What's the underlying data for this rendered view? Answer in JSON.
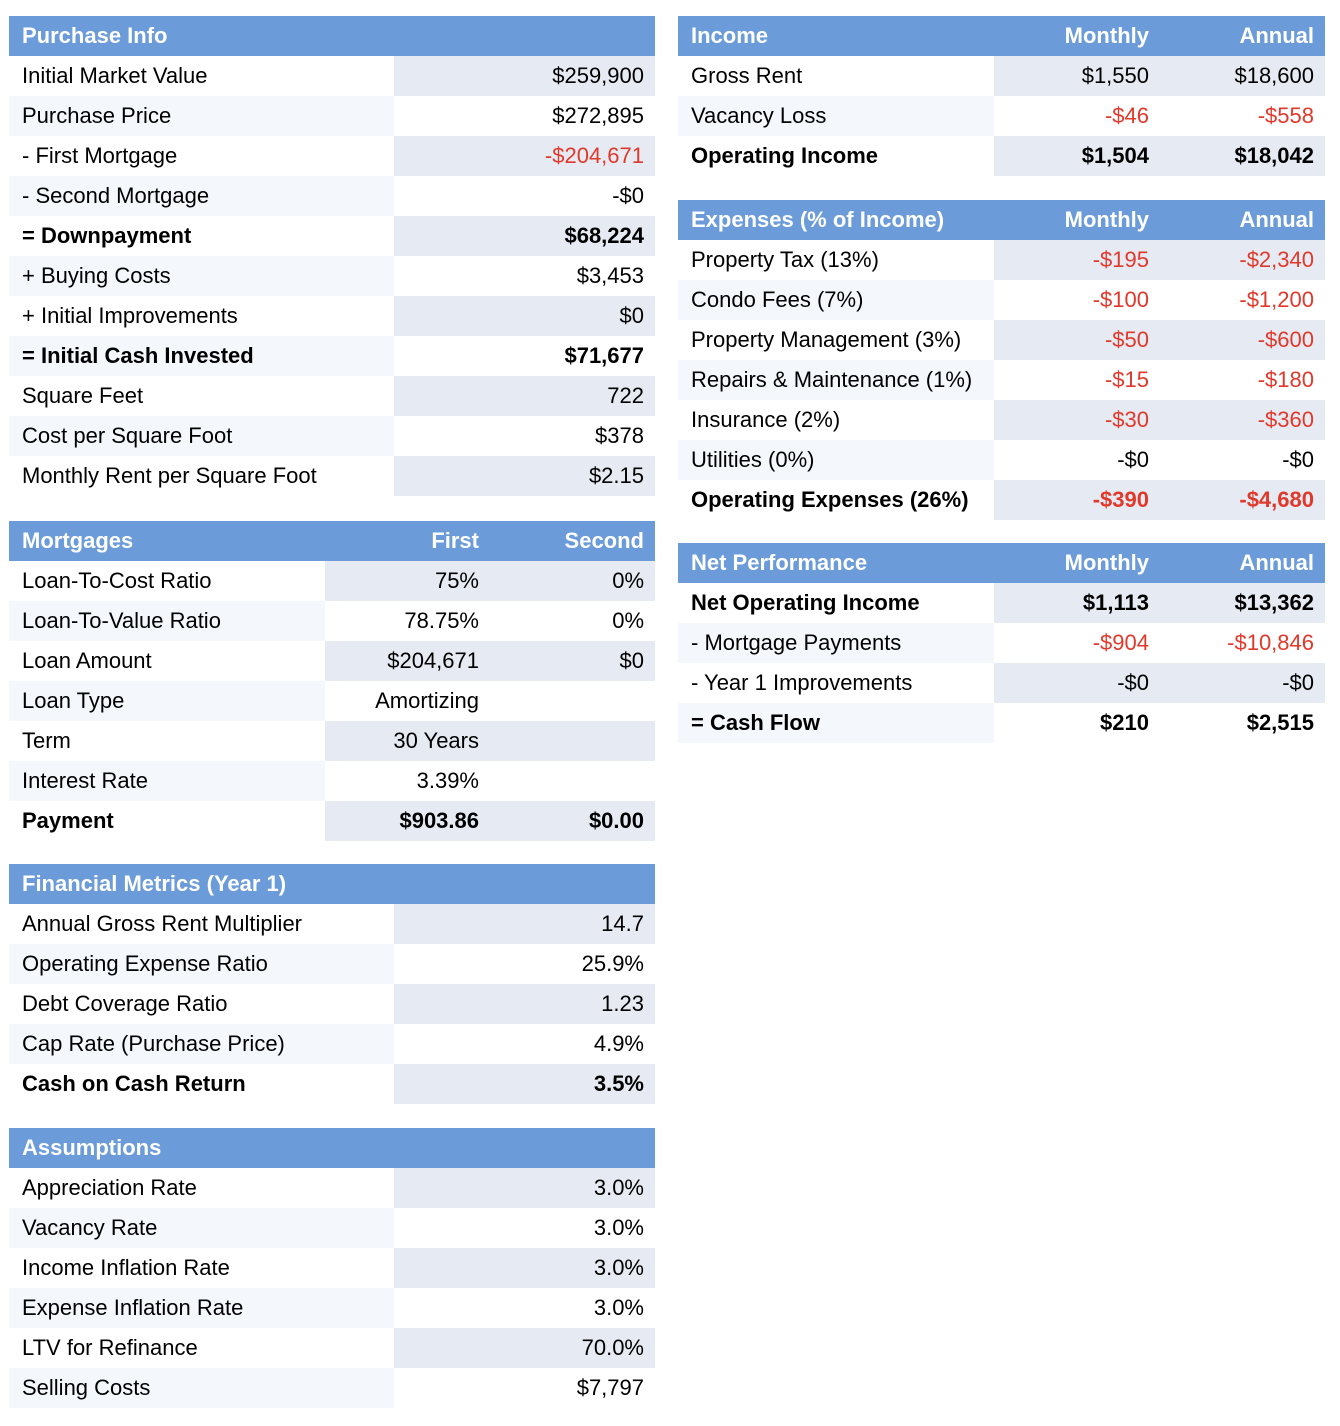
{
  "colors": {
    "header_bg": "#6b9bd8",
    "header_text": "#ffffff",
    "negative": "#e0392b",
    "shade": "#e6ebf3"
  },
  "purchase_info": {
    "title": "Purchase Info",
    "rows": [
      {
        "label": "Initial Market Value",
        "value": "$259,900"
      },
      {
        "label": "Purchase Price",
        "value": "$272,895"
      },
      {
        "label": "- First Mortgage",
        "value": "-$204,671",
        "negative": true
      },
      {
        "label": "- Second Mortgage",
        "value": "-$0"
      },
      {
        "label": "= Downpayment",
        "value": "$68,224",
        "bold": true
      },
      {
        "label": "+ Buying Costs",
        "value": "$3,453"
      },
      {
        "label": "+ Initial Improvements",
        "value": "$0"
      },
      {
        "label": "= Initial Cash Invested",
        "value": "$71,677",
        "bold": true
      },
      {
        "label": "Square Feet",
        "value": "722"
      },
      {
        "label": "Cost per Square Foot",
        "value": "$378"
      },
      {
        "label": "Monthly Rent per Square Foot",
        "value": "$2.15"
      }
    ]
  },
  "mortgages": {
    "title": "Mortgages",
    "col1": "First",
    "col2": "Second",
    "rows": [
      {
        "label": "Loan-To-Cost Ratio",
        "first": "75%",
        "second": "0%"
      },
      {
        "label": "Loan-To-Value Ratio",
        "first": "78.75%",
        "second": "0%"
      },
      {
        "label": "Loan Amount",
        "first": "$204,671",
        "second": "$0"
      },
      {
        "label": "Loan Type",
        "first": "Amortizing",
        "second": ""
      },
      {
        "label": "Term",
        "first": "30 Years",
        "second": ""
      },
      {
        "label": "Interest Rate",
        "first": "3.39%",
        "second": ""
      },
      {
        "label": "Payment",
        "first": "$903.86",
        "second": "$0.00",
        "bold": true
      }
    ]
  },
  "financial_metrics": {
    "title": "Financial Metrics (Year 1)",
    "rows": [
      {
        "label": "Annual Gross Rent Multiplier",
        "value": "14.7"
      },
      {
        "label": "Operating Expense Ratio",
        "value": "25.9%"
      },
      {
        "label": "Debt Coverage Ratio",
        "value": "1.23"
      },
      {
        "label": "Cap Rate (Purchase Price)",
        "value": "4.9%"
      },
      {
        "label": "Cash on Cash Return",
        "value": "3.5%",
        "bold": true
      }
    ]
  },
  "assumptions": {
    "title": "Assumptions",
    "rows": [
      {
        "label": "Appreciation Rate",
        "value": "3.0%"
      },
      {
        "label": "Vacancy Rate",
        "value": "3.0%"
      },
      {
        "label": "Income Inflation Rate",
        "value": "3.0%"
      },
      {
        "label": "Expense Inflation Rate",
        "value": "3.0%"
      },
      {
        "label": "LTV for Refinance",
        "value": "70.0%"
      },
      {
        "label": "Selling Costs",
        "value": "$7,797"
      }
    ]
  },
  "income": {
    "title": "Income",
    "col1": "Monthly",
    "col2": "Annual",
    "rows": [
      {
        "label": "Gross Rent",
        "monthly": "$1,550",
        "annual": "$18,600"
      },
      {
        "label": "Vacancy Loss",
        "monthly": "-$46",
        "annual": "-$558",
        "negative": true
      },
      {
        "label": "Operating Income",
        "monthly": "$1,504",
        "annual": "$18,042",
        "bold": true
      }
    ]
  },
  "expenses": {
    "title": "Expenses (% of Income)",
    "col1": "Monthly",
    "col2": "Annual",
    "rows": [
      {
        "label": "Property Tax (13%)",
        "monthly": "-$195",
        "annual": "-$2,340",
        "negative": true
      },
      {
        "label": "Condo Fees (7%)",
        "monthly": "-$100",
        "annual": "-$1,200",
        "negative": true
      },
      {
        "label": "Property Management (3%)",
        "monthly": "-$50",
        "annual": "-$600",
        "negative": true
      },
      {
        "label": "Repairs & Maintenance (1%)",
        "monthly": "-$15",
        "annual": "-$180",
        "negative": true
      },
      {
        "label": "Insurance (2%)",
        "monthly": "-$30",
        "annual": "-$360",
        "negative": true
      },
      {
        "label": "Utilities (0%)",
        "monthly": "-$0",
        "annual": "-$0"
      },
      {
        "label": "Operating Expenses (26%)",
        "monthly": "-$390",
        "annual": "-$4,680",
        "bold": true,
        "negative": true
      }
    ]
  },
  "net_performance": {
    "title": "Net Performance",
    "col1": "Monthly",
    "col2": "Annual",
    "rows": [
      {
        "label": "Net Operating Income",
        "monthly": "$1,113",
        "annual": "$13,362",
        "bold": true
      },
      {
        "label": "- Mortgage Payments",
        "monthly": "-$904",
        "annual": "-$10,846",
        "negative": true
      },
      {
        "label": "- Year 1 Improvements",
        "monthly": "-$0",
        "annual": "-$0"
      },
      {
        "label": "= Cash Flow",
        "monthly": "$210",
        "annual": "$2,515",
        "bold": true
      }
    ]
  }
}
